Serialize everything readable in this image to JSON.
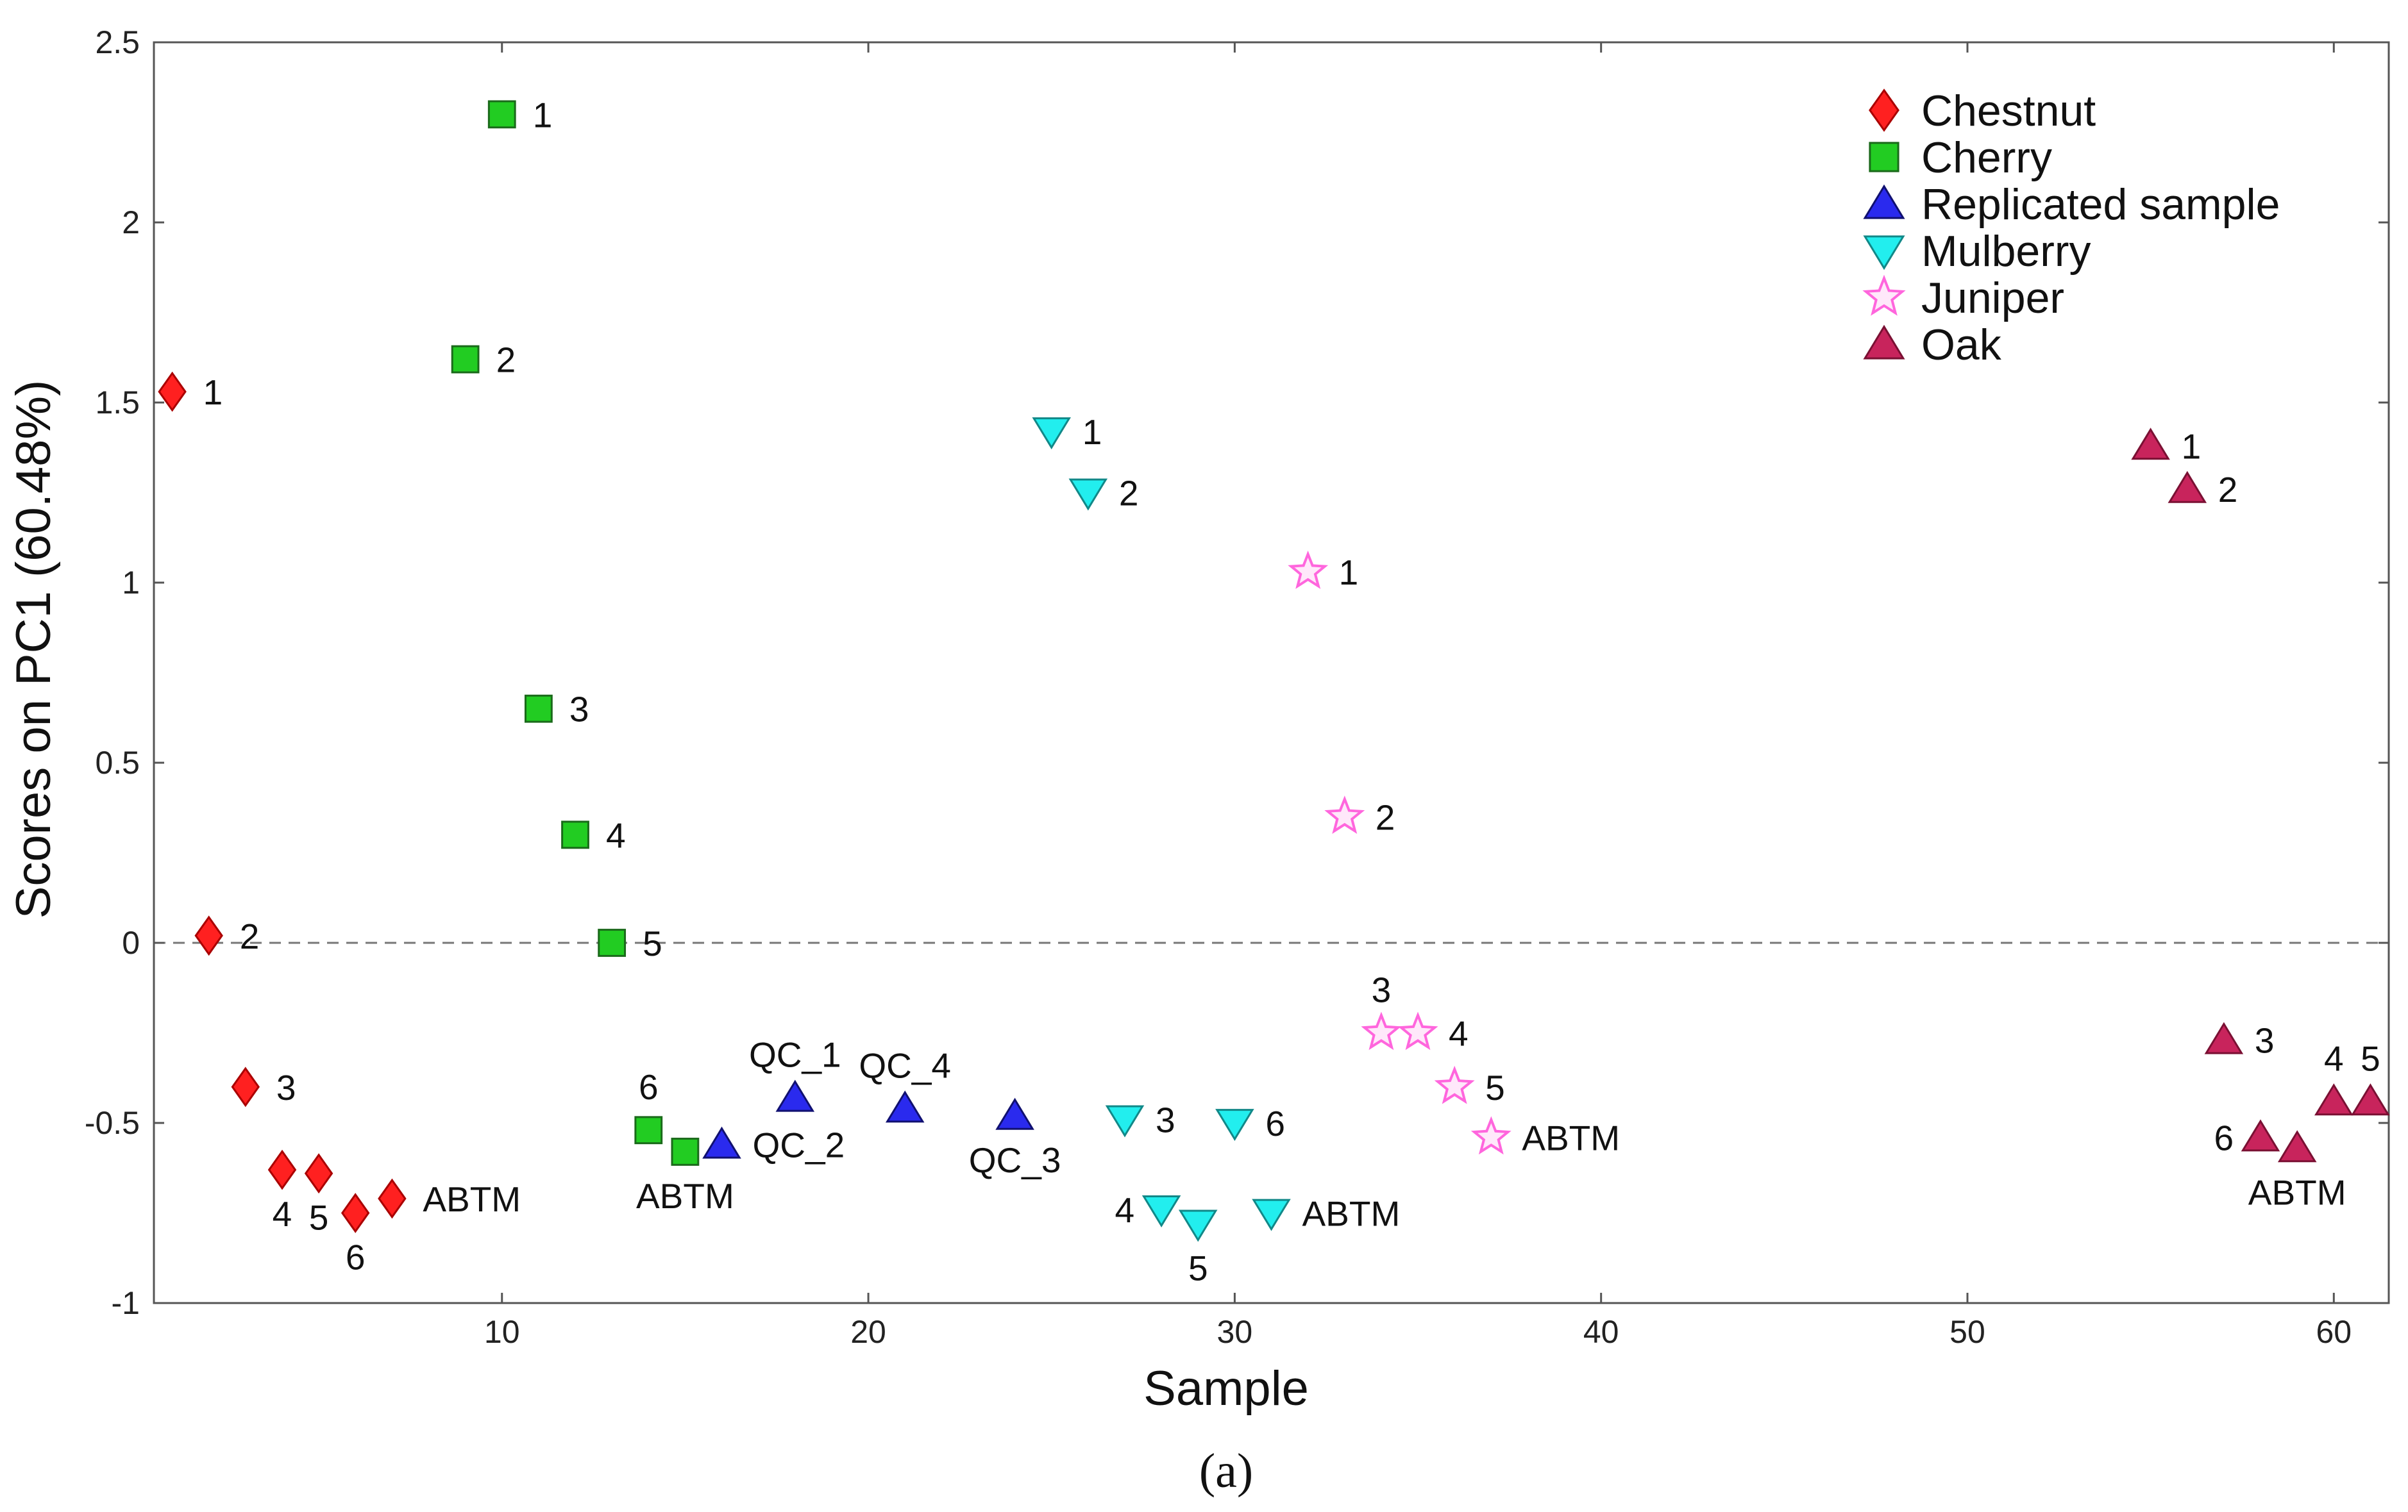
{
  "chart_data": {
    "type": "scatter",
    "title": "",
    "xlabel": "Sample",
    "ylabel": "Scores on PC1 (60.48%)",
    "caption": "(a)",
    "xlim": [
      0.5,
      61.5
    ],
    "ylim": [
      -1,
      2.5
    ],
    "xticks": [
      10,
      20,
      30,
      40,
      50,
      60
    ],
    "yticks": [
      -1,
      -0.5,
      0,
      0.5,
      1,
      1.5,
      2,
      2.5
    ],
    "reference_line": {
      "y": 0,
      "style": "dashed"
    },
    "legend_position": "top-right",
    "series": [
      {
        "name": "Chestnut",
        "marker": "diamond",
        "color": "#ff2020",
        "points": [
          {
            "x": 1,
            "y": 1.53,
            "label": "1",
            "anchor": "right"
          },
          {
            "x": 2,
            "y": 0.02,
            "label": "2",
            "anchor": "right"
          },
          {
            "x": 3,
            "y": -0.4,
            "label": "3",
            "anchor": "right"
          },
          {
            "x": 4,
            "y": -0.63,
            "label": "4",
            "anchor": "below"
          },
          {
            "x": 5,
            "y": -0.64,
            "label": "5",
            "anchor": "below"
          },
          {
            "x": 6,
            "y": -0.75,
            "label": "6",
            "anchor": "below"
          },
          {
            "x": 7,
            "y": -0.71,
            "label": "ABTM",
            "anchor": "right"
          }
        ]
      },
      {
        "name": "Cherry",
        "marker": "square",
        "color": "#22cc22",
        "points": [
          {
            "x": 10,
            "y": 2.3,
            "label": "1",
            "anchor": "right"
          },
          {
            "x": 9,
            "y": 1.62,
            "label": "2",
            "anchor": "right"
          },
          {
            "x": 11,
            "y": 0.65,
            "label": "3",
            "anchor": "right"
          },
          {
            "x": 12,
            "y": 0.3,
            "label": "4",
            "anchor": "right"
          },
          {
            "x": 13,
            "y": 0.0,
            "label": "5",
            "anchor": "right"
          },
          {
            "x": 14,
            "y": -0.52,
            "label": "6",
            "anchor": "above"
          },
          {
            "x": 15,
            "y": -0.58,
            "label": "ABTM",
            "anchor": "below"
          }
        ]
      },
      {
        "name": "Replicated sample",
        "marker": "triangle-up",
        "color": "#2a2aee",
        "points": [
          {
            "x": 18,
            "y": -0.43,
            "label": "QC_1",
            "anchor": "above"
          },
          {
            "x": 16,
            "y": -0.56,
            "label": "QC_2",
            "anchor": "right"
          },
          {
            "x": 24,
            "y": -0.48,
            "label": "QC_3",
            "anchor": "below"
          },
          {
            "x": 21,
            "y": -0.46,
            "label": "QC_4",
            "anchor": "above"
          }
        ]
      },
      {
        "name": "Mulberry",
        "marker": "triangle-down",
        "color": "#22eeee",
        "points": [
          {
            "x": 25,
            "y": 1.42,
            "label": "1",
            "anchor": "right"
          },
          {
            "x": 26,
            "y": 1.25,
            "label": "2",
            "anchor": "right"
          },
          {
            "x": 27,
            "y": -0.49,
            "label": "3",
            "anchor": "right"
          },
          {
            "x": 28,
            "y": -0.74,
            "label": "4",
            "anchor": "left"
          },
          {
            "x": 29,
            "y": -0.78,
            "label": "5",
            "anchor": "below"
          },
          {
            "x": 30,
            "y": -0.5,
            "label": "6",
            "anchor": "right"
          },
          {
            "x": 31,
            "y": -0.75,
            "label": "ABTM",
            "anchor": "right"
          }
        ]
      },
      {
        "name": "Juniper",
        "marker": "star",
        "color": "#ff66dd",
        "points": [
          {
            "x": 32,
            "y": 1.03,
            "label": "1",
            "anchor": "right"
          },
          {
            "x": 33,
            "y": 0.35,
            "label": "2",
            "anchor": "right"
          },
          {
            "x": 34,
            "y": -0.25,
            "label": "3",
            "anchor": "above"
          },
          {
            "x": 35,
            "y": -0.25,
            "label": "4",
            "anchor": "right"
          },
          {
            "x": 36,
            "y": -0.4,
            "label": "5",
            "anchor": "right"
          },
          {
            "x": 37,
            "y": -0.54,
            "label": "ABTM",
            "anchor": "right"
          }
        ]
      },
      {
        "name": "Oak",
        "marker": "triangle-up",
        "color": "#c8245c",
        "points": [
          {
            "x": 55,
            "y": 1.38,
            "label": "1",
            "anchor": "right"
          },
          {
            "x": 56,
            "y": 1.26,
            "label": "2",
            "anchor": "right"
          },
          {
            "x": 57,
            "y": -0.27,
            "label": "3",
            "anchor": "right"
          },
          {
            "x": 60,
            "y": -0.44,
            "label": "4",
            "anchor": "above"
          },
          {
            "x": 61,
            "y": -0.44,
            "label": "5",
            "anchor": "above"
          },
          {
            "x": 58,
            "y": -0.54,
            "label": "6",
            "anchor": "left"
          },
          {
            "x": 59,
            "y": -0.57,
            "label": "ABTM",
            "anchor": "below"
          }
        ]
      }
    ]
  }
}
